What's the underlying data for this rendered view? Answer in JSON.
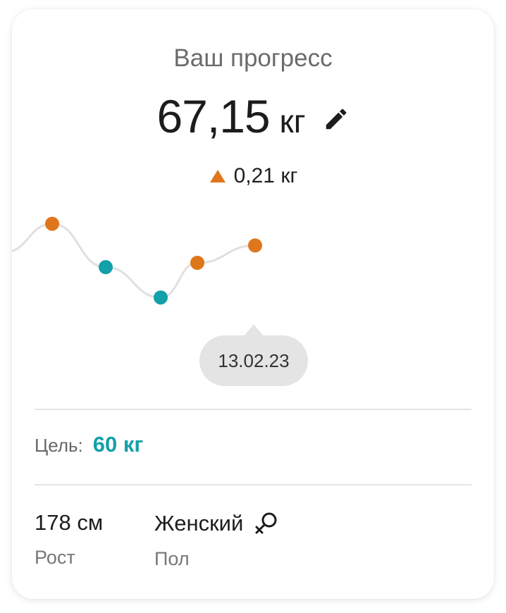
{
  "header": {
    "title": "Ваш прогресс"
  },
  "weight": {
    "value": "67,15",
    "unit": "кг",
    "edit_icon": "pencil-icon"
  },
  "delta": {
    "value": "0,21 кг",
    "direction": "up",
    "icon": "triangle-up-icon"
  },
  "colors": {
    "accent": "#13a0a8",
    "up": "#e0761b",
    "down": "#13a0a8",
    "line": "#e0e0e0",
    "tooltip_bg": "#e4e4e4"
  },
  "chart_data": {
    "type": "line",
    "points": [
      {
        "y": 67.4,
        "trend": "up"
      },
      {
        "y": 66.9,
        "trend": "down"
      },
      {
        "y": 66.55,
        "trend": "down"
      },
      {
        "y": 66.95,
        "trend": "up"
      },
      {
        "y": 67.15,
        "trend": "up"
      }
    ],
    "selected_date": "13.02.23"
  },
  "goal": {
    "label": "Цель:",
    "value": "60 кг"
  },
  "stats": [
    {
      "value": "178 см",
      "label": "Рост"
    },
    {
      "value": "Женский",
      "label": "Пол",
      "icon": "female-icon"
    }
  ]
}
